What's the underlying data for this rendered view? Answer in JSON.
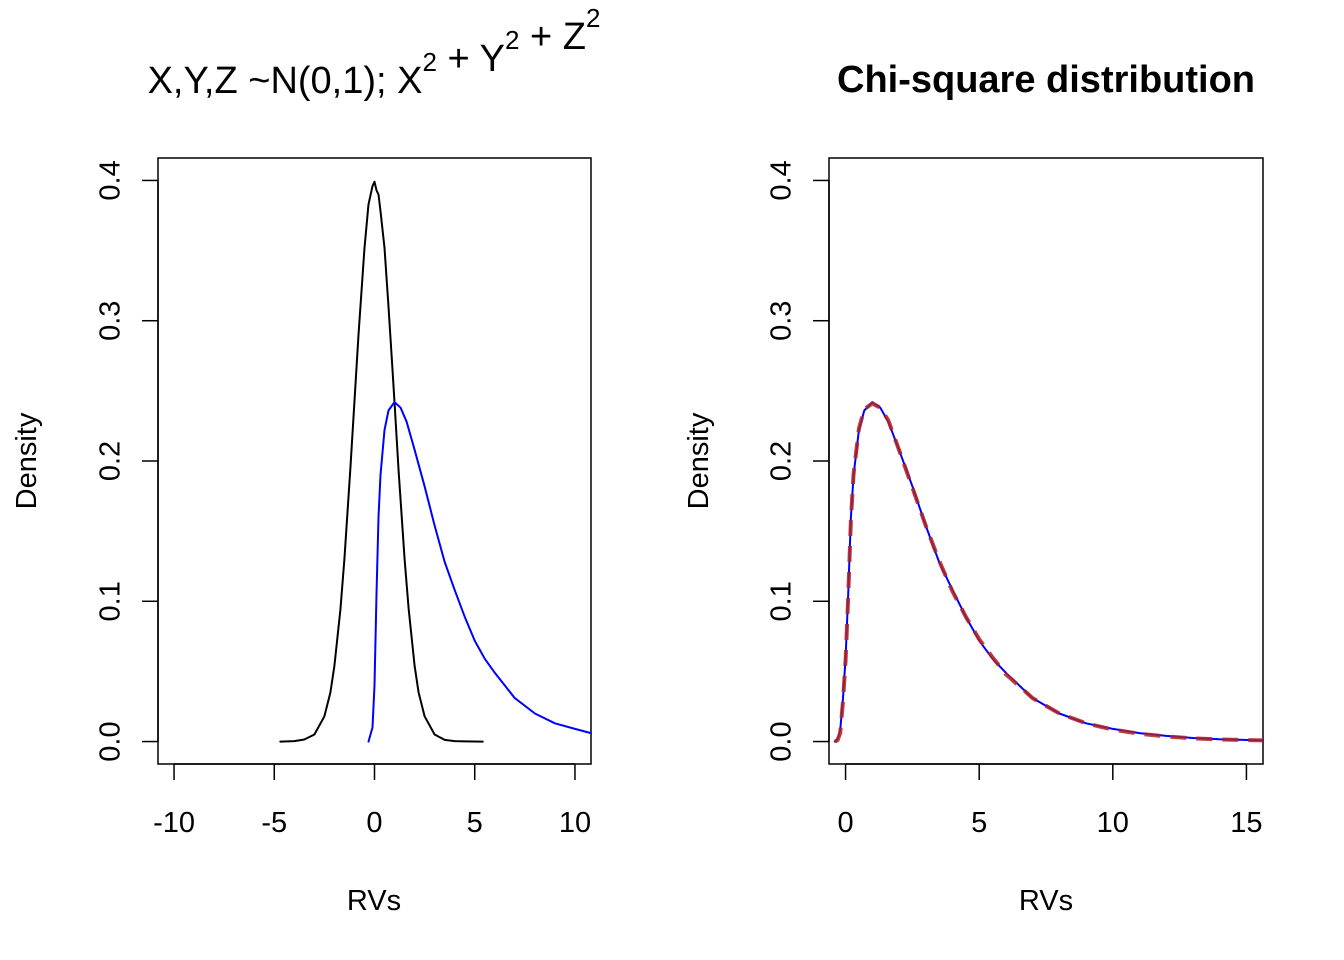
{
  "chart_data": [
    {
      "type": "line",
      "title_main": "X,Y,Z ~N(0,1);",
      "title_terms": [
        {
          "base": "X",
          "sup": "2"
        },
        {
          "op": "+"
        },
        {
          "base": "Y",
          "sup": "2"
        },
        {
          "op": "+"
        },
        {
          "base": "Z",
          "sup": "2"
        }
      ],
      "xlabel": "RVs",
      "ylabel": "Density",
      "xlim": [
        -10.8,
        10.8
      ],
      "ylim": [
        -0.016,
        0.416
      ],
      "xticks": [
        -10,
        -5,
        0,
        5,
        10
      ],
      "xtick_labels": [
        "-10",
        "-5",
        "0",
        "5",
        "10"
      ],
      "yticks": [
        0.0,
        0.1,
        0.2,
        0.3,
        0.4
      ],
      "ytick_labels": [
        "0.0",
        "0.1",
        "0.2",
        "0.3",
        "0.4"
      ],
      "series": [
        {
          "color": "#000000",
          "style": "solid",
          "x": [
            -4.7,
            -4.0,
            -3.5,
            -3.0,
            -2.5,
            -2.2,
            -2.0,
            -1.7,
            -1.5,
            -1.2,
            -1.0,
            -0.8,
            -0.5,
            -0.3,
            -0.1,
            0.0,
            0.1,
            0.2,
            0.3,
            0.5,
            0.7,
            0.9,
            1.0,
            1.2,
            1.5,
            1.7,
            2.0,
            2.2,
            2.5,
            3.0,
            3.5,
            4.0,
            4.5,
            5.4
          ],
          "y": [
            0.0,
            0.0003,
            0.0015,
            0.005,
            0.018,
            0.035,
            0.054,
            0.094,
            0.13,
            0.195,
            0.243,
            0.29,
            0.352,
            0.383,
            0.396,
            0.399,
            0.393,
            0.39,
            0.378,
            0.352,
            0.31,
            0.265,
            0.242,
            0.193,
            0.13,
            0.095,
            0.054,
            0.035,
            0.018,
            0.005,
            0.0012,
            0.0003,
            0.0001,
            0.0
          ]
        },
        {
          "color": "#0000ff",
          "style": "solid",
          "x": [
            -0.3,
            -0.1,
            0.0,
            0.1,
            0.2,
            0.3,
            0.5,
            0.7,
            1.0,
            1.3,
            1.6,
            2.0,
            2.5,
            3.0,
            3.5,
            4.0,
            4.5,
            5.0,
            5.5,
            6.0,
            7.0,
            8.0,
            9.0,
            10.0,
            10.8
          ],
          "y": [
            0.0,
            0.01,
            0.04,
            0.105,
            0.16,
            0.19,
            0.222,
            0.236,
            0.242,
            0.238,
            0.228,
            0.208,
            0.182,
            0.154,
            0.128,
            0.108,
            0.089,
            0.072,
            0.059,
            0.049,
            0.031,
            0.02,
            0.013,
            0.009,
            0.006
          ]
        }
      ]
    },
    {
      "type": "line",
      "title": "Chi-square distribution",
      "xlabel": "RVs",
      "ylabel": "Density",
      "xlim": [
        -0.62,
        15.62
      ],
      "ylim": [
        -0.016,
        0.416
      ],
      "xticks": [
        0,
        5,
        10,
        15
      ],
      "xtick_labels": [
        "0",
        "5",
        "10",
        "15"
      ],
      "yticks": [
        0.0,
        0.1,
        0.2,
        0.3,
        0.4
      ],
      "ytick_labels": [
        "0.0",
        "0.1",
        "0.2",
        "0.3",
        "0.4"
      ],
      "series": [
        {
          "color": "#0000ff",
          "style": "solid",
          "x": [
            -0.4,
            -0.3,
            -0.2,
            -0.1,
            0.0,
            0.1,
            0.2,
            0.3,
            0.5,
            0.7,
            1.0,
            1.3,
            1.6,
            2.0,
            2.5,
            3.0,
            3.5,
            4.0,
            4.5,
            5.0,
            5.5,
            6.0,
            7.0,
            8.0,
            9.0,
            10.0,
            11.0,
            12.0,
            13.0,
            14.0,
            15.62
          ],
          "y": [
            0.0,
            0.002,
            0.008,
            0.03,
            0.06,
            0.105,
            0.16,
            0.19,
            0.222,
            0.236,
            0.242,
            0.238,
            0.228,
            0.208,
            0.182,
            0.154,
            0.128,
            0.108,
            0.089,
            0.072,
            0.059,
            0.049,
            0.031,
            0.02,
            0.013,
            0.009,
            0.006,
            0.004,
            0.0025,
            0.0016,
            0.0008
          ]
        },
        {
          "color": "#b22222",
          "style": "dashed",
          "x": [
            -0.4,
            -0.3,
            -0.2,
            -0.1,
            0.0,
            0.1,
            0.2,
            0.3,
            0.5,
            0.7,
            1.0,
            1.3,
            1.6,
            2.0,
            2.5,
            3.0,
            3.5,
            4.0,
            4.5,
            5.0,
            5.5,
            6.0,
            7.0,
            8.0,
            9.0,
            10.0,
            11.0,
            12.0,
            13.0,
            14.0,
            15.62
          ],
          "y": [
            0.0,
            0.001,
            0.006,
            0.028,
            0.058,
            0.103,
            0.158,
            0.191,
            0.223,
            0.237,
            0.241,
            0.238,
            0.229,
            0.208,
            0.181,
            0.154,
            0.129,
            0.107,
            0.089,
            0.073,
            0.06,
            0.048,
            0.031,
            0.02,
            0.013,
            0.0085,
            0.0055,
            0.0036,
            0.0023,
            0.0015,
            0.0008
          ]
        }
      ]
    }
  ]
}
